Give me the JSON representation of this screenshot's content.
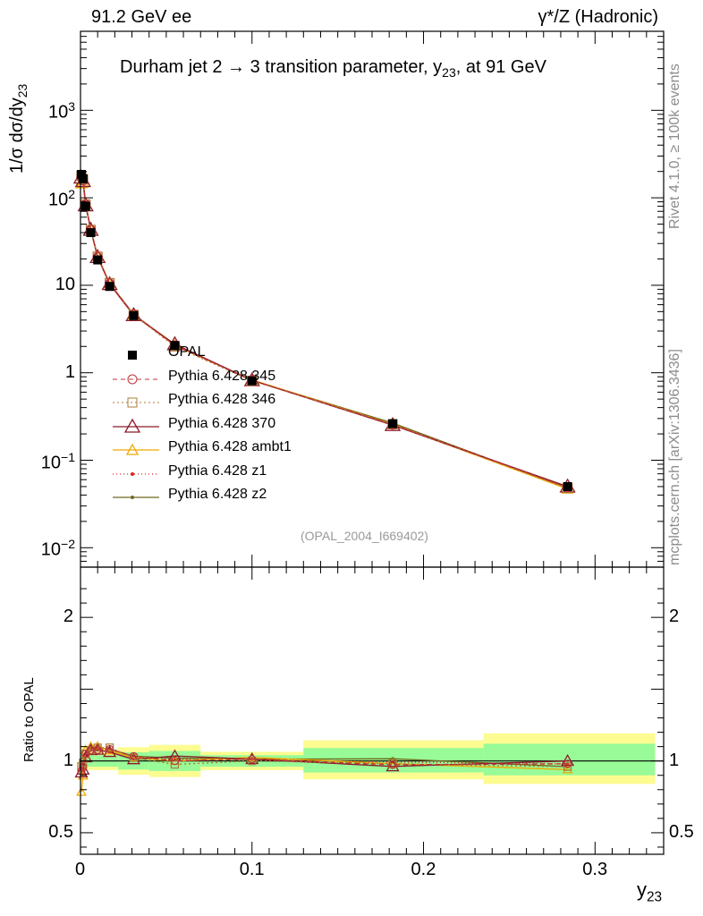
{
  "header": {
    "left": "91.2 GeV ee",
    "right": "γ*/Z (Hadronic)"
  },
  "title": {
    "prefix": "Durham jet 2 →  3 transition parameter, y",
    "sub": "23",
    "suffix": ", at 91 GeV"
  },
  "side_labels": {
    "rivet": "Rivet 4.1.0, ≥ 100k events",
    "mcplots": "mcplots.cern.ch [arXiv:1306.3436]"
  },
  "watermark": "(OPAL_2004_I669402)",
  "colors": {
    "opal": "#000000",
    "p345": "#c0343c",
    "p346": "#a87d38",
    "p370": "#8b1a2a",
    "ambt1": "#f0a800",
    "z1": "#e0201c",
    "z2": "#6e6a1e",
    "band_inner": "#98fb98",
    "band_outer": "#fcfc90"
  },
  "chart_data": [
    {
      "type": "line",
      "panel": "main",
      "ylabel": "1/σ  dσ/dy",
      "ylabel_sub": "23",
      "yscale": "log",
      "ylim": [
        0.006,
        8000
      ],
      "xlim": [
        0,
        0.34
      ],
      "y_ticks": [
        {
          "value": 0.01,
          "base": "10",
          "exp": "−2"
        },
        {
          "value": 0.1,
          "base": "10",
          "exp": "−1"
        },
        {
          "value": 1,
          "base": "1",
          "exp": ""
        },
        {
          "value": 10,
          "base": "10",
          "exp": ""
        },
        {
          "value": 100,
          "base": "10",
          "exp": "2"
        },
        {
          "value": 1000,
          "base": "10",
          "exp": "3"
        }
      ],
      "x": [
        0.0005,
        0.0015,
        0.003,
        0.006,
        0.01,
        0.017,
        0.031,
        0.055,
        0.1,
        0.182,
        0.284
      ],
      "series": [
        {
          "name": "OPAL",
          "key": "opal",
          "marker": "square",
          "values": [
            185,
            165,
            80,
            40,
            19.5,
            9.7,
            4.5,
            2.05,
            0.81,
            0.262,
            0.05
          ],
          "band_lo": [
            0.93,
            0.94,
            0.96,
            0.96,
            0.96,
            0.96,
            0.94,
            0.93,
            0.96,
            0.92,
            0.9
          ],
          "band_hi": [
            1.07,
            1.06,
            1.04,
            1.04,
            1.04,
            1.04,
            1.06,
            1.07,
            1.04,
            1.09,
            1.12
          ]
        },
        {
          "name": "Pythia 6.428 345",
          "key": "p345",
          "marker": "circle",
          "dash": "5,4",
          "values": [
            172,
            158,
            84,
            43,
            21,
            10.5,
            4.65,
            2.05,
            0.82,
            0.255,
            0.049
          ]
        },
        {
          "name": "Pythia 6.428 346",
          "key": "p346",
          "marker": "square-open",
          "dash": "2,3",
          "values": [
            178,
            163,
            84,
            43,
            21.3,
            10.6,
            4.6,
            2.0,
            0.81,
            0.257,
            0.048
          ]
        },
        {
          "name": "Pythia 6.428 370",
          "key": "p370",
          "marker": "triangle",
          "values": [
            170,
            155,
            82,
            43,
            21,
            10.3,
            4.55,
            2.12,
            0.82,
            0.252,
            0.05
          ]
        },
        {
          "name": "Pythia 6.428 ambt1",
          "key": "ambt1",
          "marker": "triangle",
          "values": [
            145,
            148,
            86,
            44,
            21.5,
            10.4,
            4.6,
            2.05,
            0.83,
            0.257,
            0.047
          ]
        },
        {
          "name": "Pythia 6.428 z1",
          "key": "z1",
          "marker": "dot",
          "dash": "1,3",
          "values": [
            175,
            160,
            83,
            43,
            21.2,
            10.4,
            4.62,
            2.07,
            0.82,
            0.26,
            0.049
          ]
        },
        {
          "name": "Pythia 6.428 z2",
          "key": "z2",
          "marker": "dot",
          "values": [
            180,
            163,
            84,
            43.5,
            21.3,
            10.5,
            4.65,
            2.09,
            0.82,
            0.266,
            0.048
          ]
        }
      ]
    },
    {
      "type": "line",
      "panel": "ratio",
      "ylabel": "Ratio to OPAL",
      "ylim": [
        0.35,
        2.35
      ],
      "xlim": [
        0,
        0.34
      ],
      "xlabel": "y",
      "xlabel_sub": "23",
      "y_ticks": [
        0.5,
        1,
        2
      ],
      "x_ticks": [
        0,
        0.1,
        0.2,
        0.3
      ],
      "band_edges": [
        0,
        0.001,
        0.002,
        0.004,
        0.008,
        0.012,
        0.022,
        0.04,
        0.07,
        0.13,
        0.235,
        0.335
      ]
    }
  ]
}
